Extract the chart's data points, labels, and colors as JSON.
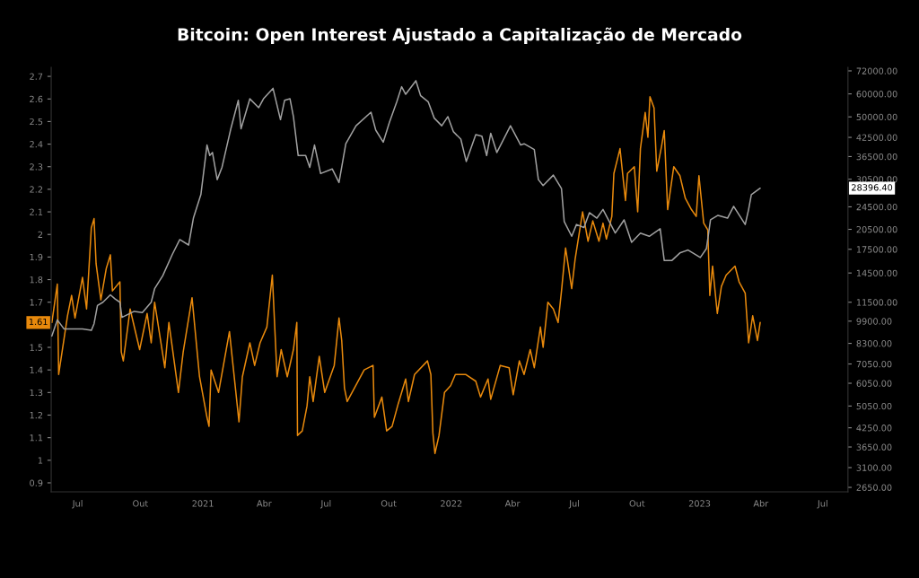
{
  "chart_data": {
    "type": "line",
    "title": "Bitcoin: Open Interest Ajustado a Capitalização de Mercado",
    "xlim": [
      "2020-05-23",
      "2023-08-07"
    ],
    "xticks": [
      {
        "value": "2020-07-01",
        "label": "Jul"
      },
      {
        "value": "2020-10-01",
        "label": "Out"
      },
      {
        "value": "2021-01-01",
        "label": "2021"
      },
      {
        "value": "2021-04-01",
        "label": "Abr"
      },
      {
        "value": "2021-07-01",
        "label": "Jul"
      },
      {
        "value": "2021-10-01",
        "label": "Out"
      },
      {
        "value": "2022-01-01",
        "label": "2022"
      },
      {
        "value": "2022-04-01",
        "label": "Abr"
      },
      {
        "value": "2022-07-01",
        "label": "Jul"
      },
      {
        "value": "2022-10-01",
        "label": "Out"
      },
      {
        "value": "2023-01-01",
        "label": "2023"
      },
      {
        "value": "2023-04-01",
        "label": "Abr"
      },
      {
        "value": "2023-07-01",
        "label": "Jul"
      }
    ],
    "ylim": [
      0.86,
      2.74
    ],
    "yticks": [
      0.9,
      1,
      1.1,
      1.2,
      1.3,
      1.4,
      1.5,
      1.7,
      1.8,
      1.9,
      2,
      2.1,
      2.2,
      2.3,
      2.4,
      2.5,
      2.6,
      2.7
    ],
    "log": "y2",
    "y2lim": [
      2557,
      74050
    ],
    "y2ticks": [
      {
        "value": 2650,
        "label": "2650.00"
      },
      {
        "value": 3100,
        "label": "3100.00"
      },
      {
        "value": 3650,
        "label": "3650.00"
      },
      {
        "value": 4250,
        "label": "4250.00"
      },
      {
        "value": 5050,
        "label": "5050.00"
      },
      {
        "value": 6050,
        "label": "6050.00"
      },
      {
        "value": 7050,
        "label": "7050.00"
      },
      {
        "value": 8300,
        "label": "8300.00"
      },
      {
        "value": 9900,
        "label": "9900.00"
      },
      {
        "value": 11500,
        "label": "11500.00"
      },
      {
        "value": 14500,
        "label": "14500.00"
      },
      {
        "value": 17500,
        "label": "17500.00"
      },
      {
        "value": 20500,
        "label": "20500.00"
      },
      {
        "value": 24500,
        "label": "24500.00"
      },
      {
        "value": 30500,
        "label": "30500.00"
      },
      {
        "value": 36500,
        "label": "36500.00"
      },
      {
        "value": 42500,
        "label": "42500.00"
      },
      {
        "value": 50000,
        "label": "50000.00"
      },
      {
        "value": 60000,
        "label": "60000.00"
      },
      {
        "value": 72000,
        "label": "72000.00"
      }
    ],
    "grid": false,
    "legend": false,
    "line_style": "solid",
    "annotations": [
      "1.61",
      "28396.40"
    ],
    "series": [
      {
        "color": "#e8890c",
        "axis": "y",
        "x": [
          "2020-05-24",
          "2020-06-01",
          "2020-06-03",
          "2020-06-11",
          "2020-06-16",
          "2020-06-22",
          "2020-06-27",
          "2020-07-08",
          "2020-07-14",
          "2020-07-21",
          "2020-07-25",
          "2020-07-28",
          "2020-08-04",
          "2020-08-12",
          "2020-08-18",
          "2020-08-21",
          "2020-09-01",
          "2020-09-03",
          "2020-09-06",
          "2020-09-16",
          "2020-09-30",
          "2020-10-11",
          "2020-10-17",
          "2020-10-22",
          "2020-11-06",
          "2020-11-12",
          "2020-11-26",
          "2020-12-03",
          "2020-12-16",
          "2020-12-27",
          "2021-01-07",
          "2021-01-10",
          "2021-01-13",
          "2021-01-24",
          "2021-02-09",
          "2021-02-23",
          "2021-02-28",
          "2021-03-11",
          "2021-03-18",
          "2021-03-26",
          "2021-04-05",
          "2021-04-13",
          "2021-04-20",
          "2021-04-26",
          "2021-05-05",
          "2021-05-14",
          "2021-05-19",
          "2021-05-20",
          "2021-05-27",
          "2021-06-03",
          "2021-06-07",
          "2021-06-12",
          "2021-06-21",
          "2021-06-29",
          "2021-07-13",
          "2021-07-20",
          "2021-07-24",
          "2021-07-28",
          "2021-08-01",
          "2021-08-26",
          "2021-09-08",
          "2021-09-10",
          "2021-09-21",
          "2021-09-28",
          "2021-10-06",
          "2021-10-15",
          "2021-10-26",
          "2021-10-30",
          "2021-11-08",
          "2021-11-27",
          "2021-12-02",
          "2021-12-05",
          "2021-12-08",
          "2021-12-14",
          "2021-12-22",
          "2021-12-31",
          "2022-01-07",
          "2022-01-22",
          "2022-02-06",
          "2022-02-13",
          "2022-02-24",
          "2022-02-28",
          "2022-03-14",
          "2022-03-27",
          "2022-04-02",
          "2022-04-11",
          "2022-04-18",
          "2022-04-27",
          "2022-05-03",
          "2022-05-12",
          "2022-05-16",
          "2022-05-23",
          "2022-05-31",
          "2022-06-07",
          "2022-06-12",
          "2022-06-18",
          "2022-06-27",
          "2022-07-02",
          "2022-07-13",
          "2022-07-21",
          "2022-07-28",
          "2022-08-06",
          "2022-08-12",
          "2022-08-17",
          "2022-08-25",
          "2022-08-28",
          "2022-09-06",
          "2022-09-14",
          "2022-09-17",
          "2022-09-27",
          "2022-10-02",
          "2022-10-06",
          "2022-10-13",
          "2022-10-17",
          "2022-10-20",
          "2022-10-26",
          "2022-10-30",
          "2022-11-06",
          "2022-11-10",
          "2022-11-15",
          "2022-11-24",
          "2022-12-03",
          "2022-12-11",
          "2022-12-20",
          "2022-12-27",
          "2022-12-31",
          "2023-01-07",
          "2023-01-13",
          "2023-01-16",
          "2023-01-20",
          "2023-01-27",
          "2023-02-02",
          "2023-02-09",
          "2023-02-22",
          "2023-02-28",
          "2023-03-09",
          "2023-03-14",
          "2023-03-20",
          "2023-03-27",
          "2023-03-31"
        ],
        "values": [
          1.61,
          1.78,
          1.38,
          1.54,
          1.64,
          1.73,
          1.63,
          1.81,
          1.67,
          2.03,
          2.07,
          1.87,
          1.71,
          1.85,
          1.91,
          1.75,
          1.79,
          1.48,
          1.44,
          1.67,
          1.49,
          1.65,
          1.52,
          1.7,
          1.41,
          1.61,
          1.3,
          1.48,
          1.72,
          1.37,
          1.19,
          1.15,
          1.4,
          1.3,
          1.57,
          1.17,
          1.37,
          1.52,
          1.42,
          1.52,
          1.59,
          1.82,
          1.37,
          1.49,
          1.37,
          1.49,
          1.61,
          1.11,
          1.13,
          1.24,
          1.37,
          1.26,
          1.46,
          1.3,
          1.42,
          1.63,
          1.53,
          1.32,
          1.26,
          1.4,
          1.42,
          1.19,
          1.28,
          1.13,
          1.15,
          1.25,
          1.36,
          1.26,
          1.38,
          1.44,
          1.38,
          1.12,
          1.03,
          1.11,
          1.3,
          1.33,
          1.38,
          1.38,
          1.35,
          1.28,
          1.36,
          1.27,
          1.42,
          1.41,
          1.29,
          1.44,
          1.38,
          1.49,
          1.41,
          1.59,
          1.5,
          1.7,
          1.67,
          1.61,
          1.75,
          1.94,
          1.76,
          1.89,
          2.1,
          1.97,
          2.06,
          1.97,
          2.05,
          1.98,
          2.08,
          2.27,
          2.38,
          2.15,
          2.27,
          2.3,
          2.1,
          2.38,
          2.54,
          2.43,
          2.61,
          2.56,
          2.28,
          2.39,
          2.46,
          2.11,
          2.3,
          2.26,
          2.16,
          2.11,
          2.08,
          2.26,
          2.05,
          2.02,
          1.73,
          1.86,
          1.65,
          1.77,
          1.82,
          1.86,
          1.79,
          1.74,
          1.52,
          1.64,
          1.53,
          1.61
        ]
      },
      {
        "color": "#a0a0a0",
        "axis": "y2",
        "x": [
          "2020-05-24",
          "2020-06-01",
          "2020-06-11",
          "2020-06-22",
          "2020-07-08",
          "2020-07-21",
          "2020-07-25",
          "2020-07-30",
          "2020-08-07",
          "2020-08-18",
          "2020-08-25",
          "2020-09-01",
          "2020-09-04",
          "2020-09-22",
          "2020-10-04",
          "2020-10-17",
          "2020-10-22",
          "2020-11-03",
          "2020-11-17",
          "2020-11-28",
          "2020-12-11",
          "2020-12-18",
          "2020-12-29",
          "2021-01-07",
          "2021-01-11",
          "2021-01-15",
          "2021-01-22",
          "2021-01-29",
          "2021-02-04",
          "2021-02-11",
          "2021-02-22",
          "2021-02-26",
          "2021-03-11",
          "2021-03-24",
          "2021-03-31",
          "2021-04-14",
          "2021-04-25",
          "2021-05-01",
          "2021-05-09",
          "2021-05-14",
          "2021-05-21",
          "2021-06-01",
          "2021-06-07",
          "2021-06-14",
          "2021-06-23",
          "2021-07-10",
          "2021-07-20",
          "2021-07-30",
          "2021-08-14",
          "2021-09-05",
          "2021-09-12",
          "2021-09-23",
          "2021-10-02",
          "2021-10-13",
          "2021-10-20",
          "2021-10-26",
          "2021-11-10",
          "2021-11-17",
          "2021-11-28",
          "2021-12-07",
          "2021-12-18",
          "2021-12-27",
          "2022-01-04",
          "2022-01-15",
          "2022-01-23",
          "2022-02-06",
          "2022-02-15",
          "2022-02-22",
          "2022-02-28",
          "2022-03-09",
          "2022-03-29",
          "2022-04-13",
          "2022-04-18",
          "2022-05-03",
          "2022-05-09",
          "2022-05-16",
          "2022-05-31",
          "2022-06-12",
          "2022-06-16",
          "2022-06-27",
          "2022-07-04",
          "2022-07-15",
          "2022-07-23",
          "2022-08-03",
          "2022-08-12",
          "2022-08-30",
          "2022-09-12",
          "2022-09-23",
          "2022-10-06",
          "2022-10-19",
          "2022-11-04",
          "2022-11-10",
          "2022-11-21",
          "2022-12-03",
          "2022-12-15",
          "2023-01-02",
          "2023-01-11",
          "2023-01-17",
          "2023-01-28",
          "2023-02-11",
          "2023-02-20",
          "2023-03-09",
          "2023-03-14",
          "2023-03-18",
          "2023-03-31"
        ],
        "values": [
          8800,
          10000,
          9300,
          9300,
          9300,
          9200,
          9700,
          11200,
          11500,
          12200,
          11800,
          11500,
          10200,
          10700,
          10600,
          11500,
          12800,
          14200,
          16800,
          18900,
          18100,
          22400,
          27000,
          40000,
          36800,
          37700,
          30400,
          33500,
          38600,
          45500,
          57000,
          45500,
          57700,
          53800,
          57700,
          62700,
          48900,
          57000,
          57700,
          50100,
          36800,
          36800,
          33500,
          40000,
          31900,
          33100,
          29700,
          40400,
          46600,
          51900,
          45000,
          40900,
          47800,
          56400,
          63500,
          59800,
          66600,
          59100,
          56400,
          49500,
          46600,
          50100,
          44500,
          41900,
          35100,
          43400,
          42900,
          36800,
          43900,
          37700,
          46600,
          40000,
          40400,
          38600,
          30400,
          29000,
          31500,
          28300,
          21800,
          19400,
          21300,
          20800,
          23400,
          22400,
          24000,
          19900,
          22100,
          18500,
          19900,
          19400,
          20600,
          16000,
          16000,
          17000,
          17400,
          16400,
          17600,
          22100,
          22900,
          22400,
          24600,
          21300,
          24000,
          27000,
          28396.4
        ]
      }
    ]
  }
}
